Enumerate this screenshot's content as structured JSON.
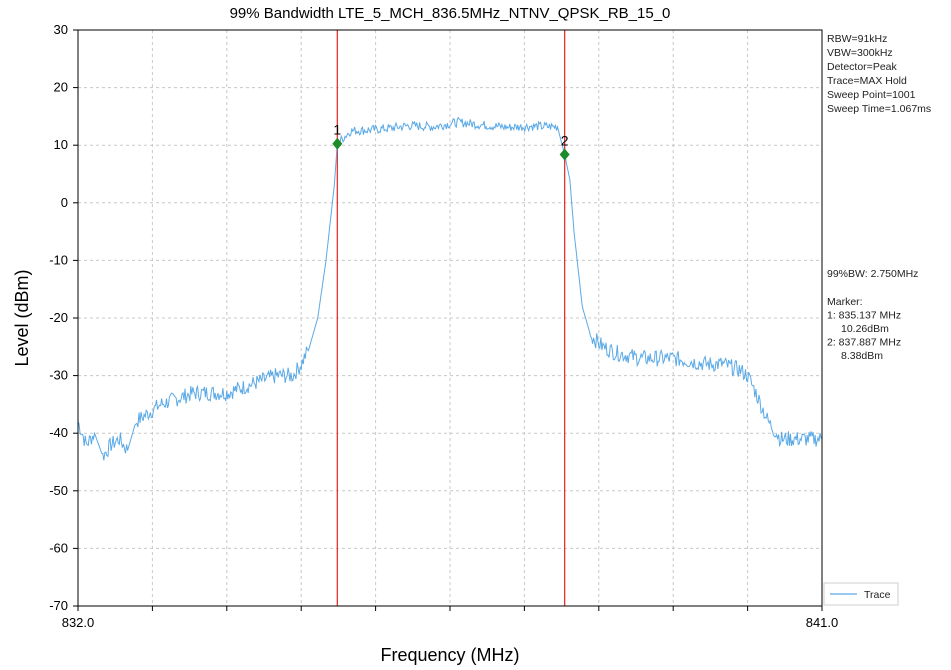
{
  "chart_data": {
    "type": "line",
    "title": "99% Bandwidth LTE_5_MCH_836.5MHz_NTNV_QPSK_RB_15_0",
    "xlabel": "Frequency (MHz)",
    "ylabel": "Level (dBm)",
    "xlim": [
      832.0,
      841.0
    ],
    "ylim": [
      -70,
      30
    ],
    "x_tick_labels": [
      "832.0",
      "841.0"
    ],
    "y_ticks": [
      30,
      20,
      10,
      0,
      -10,
      -20,
      -30,
      -40,
      -50,
      -60,
      -70
    ],
    "grid": true,
    "legend": {
      "placement": "bottom-right",
      "entries": [
        "Trace"
      ]
    },
    "settings": [
      "RBW=91kHz",
      "VBW=300kHz",
      "Detector=Peak",
      "Trace=MAX Hold",
      "Sweep Point=1001",
      "Sweep Time=1.067ms"
    ],
    "bandwidth_text": "99%BW: 2.750MHz",
    "marker_text": [
      "Marker:",
      "1: 835.137 MHz",
      "10.26dBm",
      "2: 837.887 MHz",
      "8.38dBm"
    ],
    "markers": [
      {
        "label": "1",
        "x": 835.137,
        "y": 10.26
      },
      {
        "label": "2",
        "x": 837.887,
        "y": 8.38
      }
    ],
    "colors": {
      "trace": "#5aa9e6",
      "marker_line": "#e8312f",
      "marker_point": "#1f8a2a"
    },
    "series": [
      {
        "name": "Trace",
        "x": [
          832.0,
          832.1,
          832.2,
          832.3,
          832.4,
          832.5,
          832.6,
          832.7,
          832.8,
          832.9,
          833.0,
          833.2,
          833.4,
          833.6,
          833.8,
          834.0,
          834.2,
          834.4,
          834.6,
          834.7,
          834.8,
          834.9,
          835.0,
          835.1,
          835.137,
          835.3,
          835.5,
          835.8,
          836.0,
          836.3,
          836.6,
          836.9,
          837.2,
          837.5,
          837.8,
          837.887,
          837.95,
          838.0,
          838.1,
          838.2,
          838.35,
          838.5,
          838.8,
          839.2,
          839.6,
          839.8,
          840.0,
          840.1,
          840.2,
          840.35,
          840.5,
          840.7,
          841.0
        ],
        "y": [
          -38,
          -42,
          -40,
          -44,
          -42,
          -41,
          -43,
          -38,
          -37,
          -36,
          -35,
          -34,
          -33,
          -33,
          -33,
          -32,
          -31,
          -30,
          -30,
          -28,
          -25,
          -20,
          -10,
          3,
          10.3,
          12.5,
          12.6,
          13,
          13.4,
          13.2,
          14,
          13.5,
          13.1,
          13.3,
          13.2,
          8.4,
          4,
          -5,
          -18,
          -23,
          -25,
          -26,
          -27,
          -27,
          -28,
          -28,
          -29,
          -30,
          -33,
          -38,
          -41,
          -41,
          -41
        ]
      }
    ]
  }
}
